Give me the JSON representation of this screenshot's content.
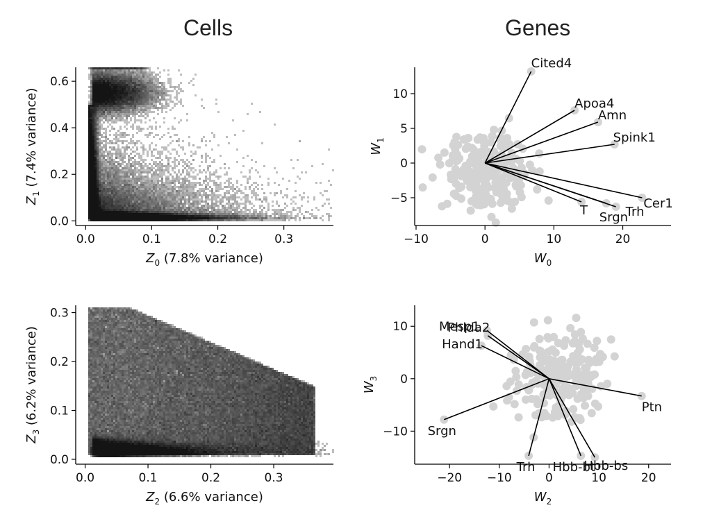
{
  "titles": {
    "left": "Cells",
    "right": "Genes"
  },
  "chart_data": [
    {
      "type": "heatmap",
      "panel": "cells-top",
      "xlabel_sym": "Z",
      "xlabel_sub": "0",
      "xlabel_rest": " (7.8% variance)",
      "ylabel_sym": "Z",
      "ylabel_sub": "1",
      "ylabel_rest": " (7.4% variance)",
      "xlim": [
        -0.015,
        0.375
      ],
      "ylim": [
        -0.02,
        0.66
      ],
      "xticks": [
        0.0,
        0.1,
        0.2,
        0.3
      ],
      "xtick_labels": [
        "0.0",
        "0.1",
        "0.2",
        "0.3"
      ],
      "yticks": [
        0.0,
        0.2,
        0.4,
        0.6
      ],
      "ytick_labels": [
        "0.0",
        "0.2",
        "0.4",
        "0.6"
      ],
      "density_note": "dense cluster near (0.02, 0.01); vertical arm along Z0≈0.01 up to Z1≈0.65; horizontal arm along Z1≈0.01 out to Z0≈0.37"
    },
    {
      "type": "heatmap",
      "panel": "cells-bottom",
      "xlabel_sym": "Z",
      "xlabel_sub": "2",
      "xlabel_rest": " (6.6% variance)",
      "ylabel_sym": "Z",
      "ylabel_sub": "3",
      "ylabel_rest": " (6.2% variance)",
      "xlim": [
        -0.015,
        0.395
      ],
      "ylim": [
        -0.01,
        0.315
      ],
      "xticks": [
        0.0,
        0.1,
        0.2,
        0.3
      ],
      "xtick_labels": [
        "0.0",
        "0.1",
        "0.2",
        "0.3"
      ],
      "yticks": [
        0.0,
        0.1,
        0.2,
        0.3
      ],
      "ytick_labels": [
        "0.0",
        "0.1",
        "0.2",
        "0.3"
      ],
      "density_note": "dense cluster near (0.02, 0.02); broad triangular cloud up to Z3≈0.3; horizontal band along Z3≈0.02 out to Z2≈0.39"
    },
    {
      "type": "scatter",
      "panel": "genes-top",
      "xlabel_sym": "W",
      "xlabel_sub": "0",
      "ylabel_sym": "W",
      "ylabel_sub": "1",
      "xlim": [
        -10.2,
        27
      ],
      "ylim": [
        -9,
        13.8
      ],
      "xticks": [
        -10,
        0,
        10,
        20
      ],
      "xtick_labels": [
        "−10",
        "0",
        "10",
        "20"
      ],
      "yticks": [
        -5,
        0,
        5,
        10
      ],
      "ytick_labels": [
        "−5",
        "0",
        "5",
        "10"
      ],
      "labeled_genes": [
        {
          "name": "Cited4",
          "x": 6.7,
          "y": 13.2
        },
        {
          "name": "Apoa4",
          "x": 13.0,
          "y": 7.6
        },
        {
          "name": "Amn",
          "x": 16.4,
          "y": 5.9
        },
        {
          "name": "Spink1",
          "x": 18.8,
          "y": 2.7
        },
        {
          "name": "Cer1",
          "x": 22.8,
          "y": -5.0
        },
        {
          "name": "T",
          "x": 14.0,
          "y": -5.6
        },
        {
          "name": "Srgn",
          "x": 17.6,
          "y": -5.8
        },
        {
          "name": "Trh",
          "x": 19.0,
          "y": -6.3
        }
      ]
    },
    {
      "type": "scatter",
      "panel": "genes-bottom",
      "xlabel_sym": "W",
      "xlabel_sub": "2",
      "ylabel_sym": "W",
      "ylabel_sub": "3",
      "xlim": [
        -27,
        24.5
      ],
      "ylim": [
        -16.3,
        14
      ],
      "xticks": [
        -20,
        -10,
        0,
        10,
        20
      ],
      "xtick_labels": [
        "−20",
        "−10",
        "0",
        "10",
        "20"
      ],
      "yticks": [
        -10,
        0,
        10
      ],
      "ytick_labels": [
        "−10",
        "0",
        "10"
      ],
      "labeled_genes": [
        {
          "name": "Mesp1",
          "x": -12.5,
          "y": 9.2
        },
        {
          "name": "Phlda2",
          "x": -12.3,
          "y": 8.2
        },
        {
          "name": "Hand1",
          "x": -13.6,
          "y": 6.3
        },
        {
          "name": "Ptn",
          "x": 18.6,
          "y": -3.3
        },
        {
          "name": "Srgn",
          "x": -21.1,
          "y": -7.8
        },
        {
          "name": "Trh",
          "x": -4.1,
          "y": -14.7
        },
        {
          "name": "Hbb-bt",
          "x": 6.4,
          "y": -14.7
        },
        {
          "name": "Hbb-bs",
          "x": 9.2,
          "y": -15.0
        }
      ]
    }
  ]
}
